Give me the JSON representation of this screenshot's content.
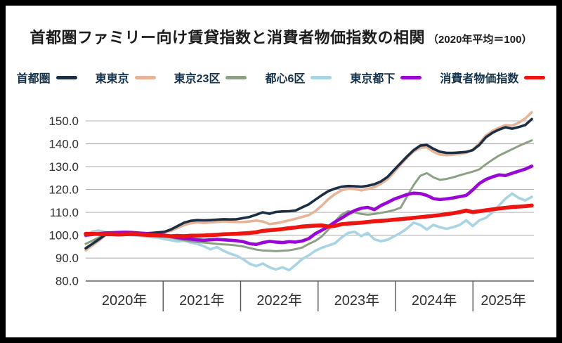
{
  "title": {
    "main": "首都圏ファミリー向け賃貸指数と消費者物価指数の相関",
    "note": "（2020年平均＝100）"
  },
  "colors": {
    "frame": "#000000",
    "card_background": "#ffffff",
    "legend_text": "#14324a",
    "axis_text": "#303030",
    "gridline": "#b3b3b3",
    "axis_line": "#7a7a7a",
    "divider": "#555555"
  },
  "chart_data": {
    "type": "line",
    "x_unit": "month",
    "x_start": "2020-01",
    "x_end": "2025-09",
    "x_year_labels": [
      "2020年",
      "2021年",
      "2022年",
      "2023年",
      "2024年",
      "2025年"
    ],
    "y_ticks": [
      80,
      90,
      100,
      110,
      120,
      130,
      140,
      150
    ],
    "y_tick_labels": [
      "80.0",
      "90.0",
      "100.0",
      "110.0",
      "120.0",
      "130.0",
      "140.0",
      "150.0"
    ],
    "ylim": [
      78,
      157
    ],
    "grid": "horizontal",
    "legend_position": "top",
    "draw_order": [
      "toshin6ku",
      "tokyo23ku",
      "higashitokyo",
      "shutoken",
      "tokyotoka",
      "cpi"
    ],
    "series": [
      {
        "name": "首都圏",
        "key": "shutoken",
        "color": "#1b2e44",
        "width": 3.6,
        "values": [
          94.3,
          96.2,
          98.2,
          100.2,
          100.8,
          101.0,
          101.0,
          100.8,
          100.7,
          100.8,
          101.0,
          101.2,
          101.5,
          102.5,
          104.0,
          105.5,
          106.3,
          106.6,
          106.5,
          106.6,
          106.8,
          107.0,
          106.9,
          107.0,
          107.5,
          108.0,
          109.0,
          110.0,
          109.4,
          110.2,
          110.4,
          110.5,
          110.8,
          112.2,
          113.5,
          115.5,
          117.5,
          119.3,
          120.4,
          121.2,
          121.5,
          121.4,
          121.2,
          121.6,
          122.3,
          123.5,
          125.5,
          128.5,
          131.5,
          134.5,
          137.2,
          139.2,
          139.5,
          137.8,
          136.5,
          136.0,
          136.0,
          136.2,
          136.4,
          137.2,
          139.5,
          142.8,
          144.8,
          146.2,
          147.2,
          146.6,
          147.3,
          148.2,
          150.8
        ]
      },
      {
        "name": "東東京",
        "key": "higashitokyo",
        "color": "#e7b497",
        "width": 3.6,
        "values": [
          93.4,
          95.5,
          97.6,
          100.0,
          100.7,
          100.9,
          101.0,
          100.8,
          100.6,
          100.7,
          100.9,
          101.1,
          101.2,
          101.9,
          103.2,
          104.4,
          105.2,
          105.6,
          105.4,
          105.6,
          105.8,
          106.1,
          105.9,
          105.8,
          105.8,
          106.0,
          106.4,
          106.0,
          104.9,
          105.2,
          105.8,
          106.5,
          107.2,
          108.0,
          108.8,
          110.5,
          113.0,
          115.8,
          118.0,
          119.6,
          120.4,
          120.2,
          119.6,
          120.2,
          121.0,
          122.5,
          124.5,
          127.5,
          130.8,
          134.0,
          136.6,
          138.3,
          138.5,
          136.5,
          135.3,
          135.0,
          135.2,
          135.6,
          136.0,
          137.5,
          140.2,
          143.6,
          145.6,
          147.0,
          148.2,
          147.9,
          149.2,
          151.0,
          153.8
        ]
      },
      {
        "name": "東京23区",
        "key": "tokyo23ku",
        "color": "#8aa184",
        "width": 3.0,
        "values": [
          96.2,
          97.6,
          99.0,
          100.3,
          100.6,
          100.8,
          100.7,
          100.5,
          100.3,
          100.1,
          100.0,
          99.8,
          99.4,
          98.9,
          98.3,
          97.8,
          97.4,
          97.0,
          96.8,
          96.5,
          96.2,
          96.0,
          95.8,
          95.5,
          95.1,
          94.4,
          93.7,
          93.3,
          93.2,
          93.0,
          93.2,
          93.4,
          93.9,
          94.6,
          96.2,
          97.5,
          99.5,
          102.5,
          106.0,
          109.0,
          110.5,
          110.0,
          109.3,
          109.0,
          109.3,
          109.8,
          110.3,
          111.0,
          112.0,
          117.0,
          122.0,
          126.0,
          127.2,
          125.3,
          124.2,
          124.6,
          125.3,
          126.2,
          127.0,
          127.8,
          128.8,
          131.0,
          133.0,
          134.8,
          136.2,
          137.6,
          139.0,
          140.3,
          141.5
        ]
      },
      {
        "name": "都心6区",
        "key": "toshin6ku",
        "color": "#a8d4e4",
        "width": 3.6,
        "values": [
          99.5,
          101.6,
          102.0,
          101.4,
          100.8,
          100.5,
          100.2,
          100.0,
          99.8,
          99.5,
          99.2,
          99.0,
          98.3,
          97.8,
          97.3,
          97.6,
          96.8,
          96.2,
          95.2,
          93.8,
          94.8,
          93.2,
          92.0,
          91.0,
          89.5,
          87.5,
          86.5,
          87.6,
          86.0,
          85.0,
          86.0,
          84.7,
          87.0,
          89.6,
          91.2,
          93.2,
          94.5,
          95.5,
          96.5,
          99.0,
          101.0,
          101.5,
          99.6,
          101.0,
          98.2,
          97.4,
          98.0,
          99.5,
          101.0,
          103.0,
          105.5,
          104.5,
          102.5,
          104.5,
          103.5,
          102.8,
          103.5,
          104.5,
          106.5,
          104.0,
          106.5,
          107.6,
          110.0,
          113.0,
          116.0,
          118.2,
          116.3,
          115.2,
          116.8
        ]
      },
      {
        "name": "東京都下",
        "key": "tokyotoka",
        "color": "#9906d6",
        "width": 4.6,
        "values": [
          100.0,
          100.3,
          100.7,
          101.0,
          101.1,
          101.2,
          101.3,
          101.2,
          101.0,
          100.8,
          100.5,
          100.2,
          100.0,
          99.5,
          99.0,
          98.6,
          98.3,
          98.0,
          97.8,
          98.0,
          98.2,
          98.0,
          97.8,
          97.6,
          97.2,
          96.3,
          96.0,
          96.8,
          97.3,
          97.0,
          96.8,
          97.2,
          97.0,
          97.5,
          98.5,
          100.7,
          102.2,
          103.8,
          105.8,
          107.5,
          109.3,
          110.8,
          111.8,
          112.2,
          111.2,
          113.0,
          114.3,
          115.8,
          116.8,
          117.8,
          118.4,
          118.2,
          117.4,
          116.0,
          115.6,
          115.9,
          116.3,
          116.9,
          117.4,
          119.8,
          122.6,
          124.4,
          125.5,
          126.4,
          126.1,
          127.1,
          128.0,
          128.9,
          130.2
        ]
      },
      {
        "name": "消費者物価指数",
        "key": "cpi",
        "color": "#ee1511",
        "width": 5.6,
        "values": [
          100.6,
          100.6,
          100.5,
          100.4,
          100.4,
          100.3,
          100.4,
          100.5,
          100.4,
          100.2,
          100.0,
          99.9,
          99.8,
          99.6,
          99.7,
          99.6,
          99.8,
          99.8,
          99.9,
          100.0,
          100.2,
          100.4,
          100.5,
          100.6,
          100.8,
          101.0,
          101.3,
          101.9,
          102.2,
          102.4,
          102.7,
          103.1,
          103.4,
          103.8,
          104.0,
          104.2,
          104.3,
          103.8,
          104.1,
          104.8,
          105.1,
          105.3,
          105.5,
          105.8,
          106.1,
          106.3,
          106.5,
          106.8,
          107.0,
          107.3,
          107.6,
          107.9,
          108.2,
          108.5,
          108.8,
          109.2,
          109.6,
          110.1,
          110.8,
          110.1,
          110.5,
          110.9,
          111.3,
          111.7,
          112.0,
          112.3,
          112.5,
          112.7,
          113.0
        ]
      }
    ]
  }
}
